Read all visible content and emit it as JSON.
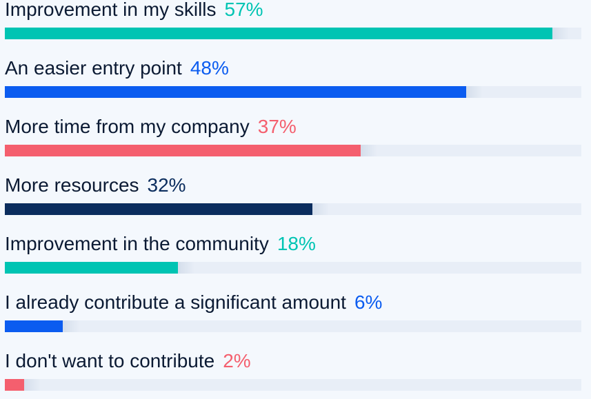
{
  "chart_data": {
    "type": "bar",
    "orientation": "horizontal",
    "unit": "%",
    "xlim": [
      0,
      60
    ],
    "grid": false,
    "legend": "none",
    "categories": [
      "Improvement in my skills",
      "An easier entry point",
      "More time from my company",
      "More resources",
      "Improvement in the community",
      "I already contribute a significant amount",
      "I don't want to contribute"
    ],
    "values": [
      57,
      48,
      37,
      32,
      18,
      6,
      2
    ],
    "value_labels": [
      "57%",
      "48%",
      "37%",
      "32%",
      "18%",
      "6%",
      "2%"
    ],
    "colors": [
      "#00c4b3",
      "#0b5cf0",
      "#f45f6e",
      "#0b2d5e",
      "#00c4b3",
      "#0b5cf0",
      "#f45f6e"
    ]
  }
}
